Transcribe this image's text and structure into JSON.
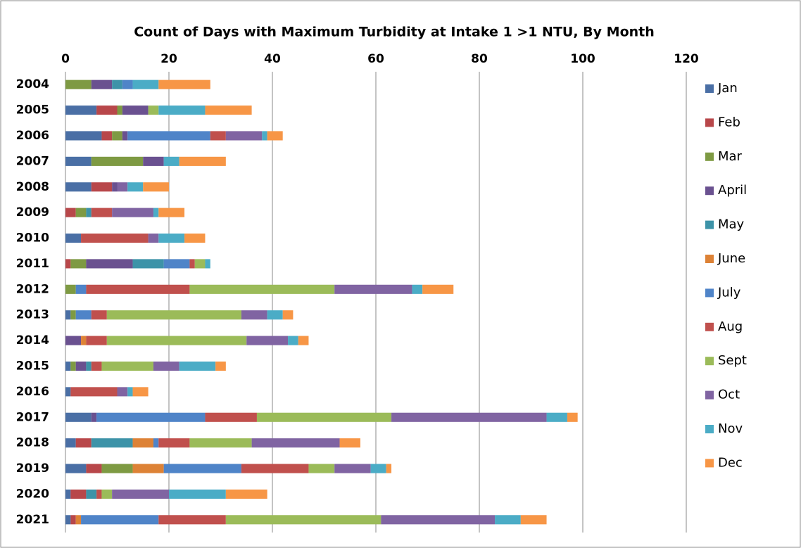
{
  "chart_data": {
    "type": "stacked-bar-horizontal",
    "title": "Count of Days with Maximum Turbidity at Intake 1 >1 NTU, By Month",
    "categories": [
      "2004",
      "2005",
      "2006",
      "2007",
      "2008",
      "2009",
      "2010",
      "2011",
      "2012",
      "2013",
      "2014",
      "2015",
      "2016",
      "2017",
      "2018",
      "2019",
      "2020",
      "2021"
    ],
    "xlim": [
      0,
      120
    ],
    "xticks": [
      0,
      20,
      40,
      60,
      80,
      100,
      120
    ],
    "grid": true,
    "legend": "right",
    "series": [
      {
        "name": "Jan",
        "color": "#4a6fa5",
        "values": [
          0,
          6,
          7,
          5,
          5,
          0,
          3,
          0,
          0,
          1,
          0,
          1,
          1,
          5,
          2,
          4,
          1,
          1
        ]
      },
      {
        "name": "Feb",
        "color": "#b8474a",
        "values": [
          0,
          4,
          2,
          0,
          4,
          2,
          0,
          1,
          0,
          0,
          0,
          0,
          0,
          0,
          3,
          3,
          3,
          1
        ]
      },
      {
        "name": "Mar",
        "color": "#7e9a43",
        "values": [
          5,
          1,
          2,
          10,
          0,
          2,
          0,
          3,
          2,
          1,
          0,
          1,
          0,
          0,
          0,
          6,
          0,
          0
        ]
      },
      {
        "name": "April",
        "color": "#6a5190",
        "values": [
          4,
          5,
          1,
          4,
          1,
          0,
          0,
          9,
          0,
          0,
          3,
          2,
          0,
          1,
          0,
          0,
          0,
          0
        ]
      },
      {
        "name": "May",
        "color": "#3d93a8",
        "values": [
          2,
          0,
          0,
          0,
          0,
          1,
          0,
          6,
          0,
          0,
          0,
          1,
          0,
          0,
          8,
          0,
          2,
          0
        ]
      },
      {
        "name": "June",
        "color": "#dd8236",
        "values": [
          0,
          0,
          0,
          0,
          0,
          0,
          0,
          0,
          0,
          0,
          1,
          0,
          0,
          0,
          4,
          6,
          0,
          1
        ]
      },
      {
        "name": "July",
        "color": "#4f84c8",
        "values": [
          2,
          0,
          16,
          0,
          0,
          0,
          0,
          5,
          2,
          3,
          0,
          0,
          0,
          21,
          1,
          15,
          0,
          15
        ]
      },
      {
        "name": "Aug",
        "color": "#c0504d",
        "values": [
          0,
          0,
          3,
          0,
          0,
          4,
          13,
          1,
          20,
          3,
          4,
          2,
          9,
          10,
          6,
          13,
          1,
          13
        ]
      },
      {
        "name": "Sept",
        "color": "#9bbb59",
        "values": [
          0,
          2,
          0,
          0,
          0,
          0,
          0,
          2,
          28,
          26,
          27,
          10,
          0,
          26,
          12,
          5,
          2,
          30
        ]
      },
      {
        "name": "Oct",
        "color": "#8064a2",
        "values": [
          0,
          0,
          7,
          0,
          2,
          8,
          2,
          0,
          15,
          5,
          8,
          5,
          2,
          30,
          17,
          7,
          11,
          22
        ]
      },
      {
        "name": "Nov",
        "color": "#4bacc6",
        "values": [
          5,
          9,
          1,
          3,
          3,
          1,
          5,
          1,
          2,
          3,
          2,
          7,
          1,
          4,
          0,
          3,
          11,
          5
        ]
      },
      {
        "name": "Dec",
        "color": "#f79646",
        "values": [
          10,
          9,
          3,
          9,
          5,
          5,
          4,
          0,
          6,
          2,
          2,
          2,
          3,
          2,
          4,
          1,
          8,
          5
        ]
      }
    ]
  }
}
